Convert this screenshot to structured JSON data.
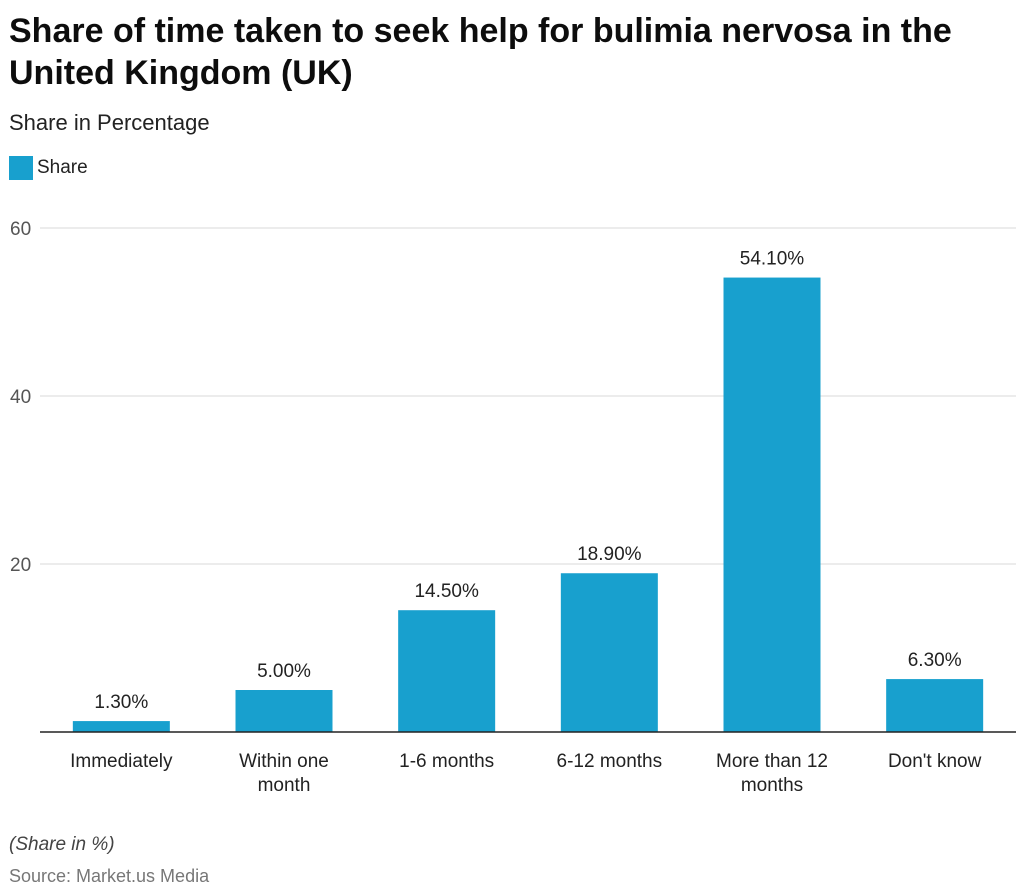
{
  "title": "Share of time taken to seek help for bulimia nervosa in the United Kingdom (UK)",
  "subtitle": "Share in Percentage",
  "footnote": "(Share in %)",
  "source": "Source: Market.us Media",
  "colors": {
    "bar": "#18a0ce",
    "grid": "#d9d9d9",
    "axis": "#222222",
    "tick_text": "#555555",
    "label_text": "#222222"
  },
  "chart_data": {
    "type": "bar",
    "categories": [
      [
        "Immediately"
      ],
      [
        "Within one",
        "month"
      ],
      [
        "1-6 months"
      ],
      [
        "6-12 months"
      ],
      [
        "More than 12",
        "months"
      ],
      [
        "Don't know"
      ]
    ],
    "series": [
      {
        "name": "Share",
        "values": [
          1.3,
          5.0,
          14.5,
          18.9,
          54.1,
          6.3
        ],
        "labels": [
          "1.30%",
          "5.00%",
          "14.50%",
          "18.90%",
          "54.10%",
          "6.30%"
        ]
      }
    ],
    "ylim": [
      0,
      60
    ],
    "yticks": [
      20,
      40,
      60
    ],
    "grid": true,
    "legend": "top-left"
  }
}
